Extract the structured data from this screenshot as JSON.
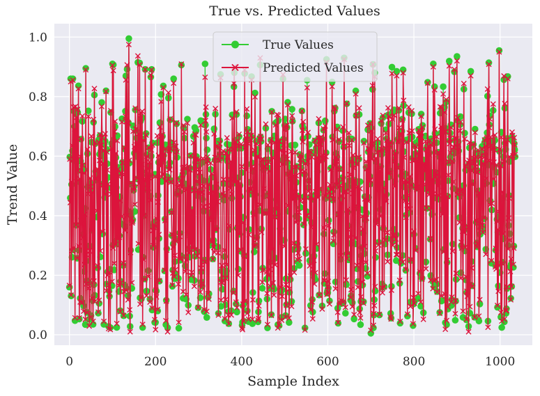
{
  "chart_data": {
    "type": "line",
    "title": "True vs. Predicted Values",
    "xlabel": "Sample Index",
    "ylabel": "Trend Value",
    "xlim": [
      -35,
      1075
    ],
    "ylim": [
      -0.035,
      1.045
    ],
    "xticks": [
      0,
      200,
      400,
      600,
      800,
      1000
    ],
    "xtick_labels": [
      "0",
      "200",
      "400",
      "600",
      "800",
      "1000"
    ],
    "yticks": [
      0.0,
      0.2,
      0.4,
      0.6,
      0.8,
      1.0
    ],
    "ytick_labels": [
      "0.0",
      "0.2",
      "0.4",
      "0.6",
      "0.8",
      "1.0"
    ],
    "grid": true,
    "background": "#eaeaf2",
    "legend_position": "top-center",
    "series": [
      {
        "name": "True Values",
        "color": "#33cc33",
        "marker": "circle",
        "n_points": 1036,
        "x_range": [
          0,
          1035
        ],
        "y_range": [
          0.005,
          0.995
        ],
        "highlights": [
          {
            "x": 3,
            "y": 0.86
          },
          {
            "x": 8,
            "y": 0.86
          },
          {
            "x": 38,
            "y": 0.895
          },
          {
            "x": 100,
            "y": 0.91
          },
          {
            "x": 138,
            "y": 0.995
          },
          {
            "x": 242,
            "y": 0.86
          },
          {
            "x": 315,
            "y": 0.91
          },
          {
            "x": 552,
            "y": 0.855
          },
          {
            "x": 597,
            "y": 0.925
          },
          {
            "x": 638,
            "y": 0.93
          },
          {
            "x": 760,
            "y": 0.885
          },
          {
            "x": 775,
            "y": 0.89
          },
          {
            "x": 845,
            "y": 0.91
          },
          {
            "x": 900,
            "y": 0.935
          },
          {
            "x": 932,
            "y": 0.885
          },
          {
            "x": 998,
            "y": 0.955
          },
          {
            "x": 55,
            "y": 0.035
          },
          {
            "x": 80,
            "y": 0.035
          },
          {
            "x": 205,
            "y": 0.08
          },
          {
            "x": 700,
            "y": 0.005
          }
        ]
      },
      {
        "name": "Predicted Values",
        "color": "#dc143c",
        "marker": "x",
        "n_points": 1036,
        "x_range": [
          0,
          1035
        ],
        "y_range": [
          0.01,
          0.975
        ],
        "highlights": [
          {
            "x": 3,
            "y": 0.85
          },
          {
            "x": 8,
            "y": 0.855
          },
          {
            "x": 38,
            "y": 0.89
          },
          {
            "x": 100,
            "y": 0.905
          },
          {
            "x": 138,
            "y": 0.975
          },
          {
            "x": 242,
            "y": 0.845
          },
          {
            "x": 315,
            "y": 0.865
          },
          {
            "x": 552,
            "y": 0.83
          },
          {
            "x": 597,
            "y": 0.915
          },
          {
            "x": 638,
            "y": 0.925
          },
          {
            "x": 760,
            "y": 0.87
          },
          {
            "x": 775,
            "y": 0.88
          },
          {
            "x": 845,
            "y": 0.9
          },
          {
            "x": 900,
            "y": 0.92
          },
          {
            "x": 932,
            "y": 0.87
          },
          {
            "x": 998,
            "y": 0.95
          },
          {
            "x": 55,
            "y": 0.045
          },
          {
            "x": 80,
            "y": 0.045
          },
          {
            "x": 205,
            "y": 0.085
          },
          {
            "x": 700,
            "y": 0.015
          }
        ]
      }
    ]
  }
}
